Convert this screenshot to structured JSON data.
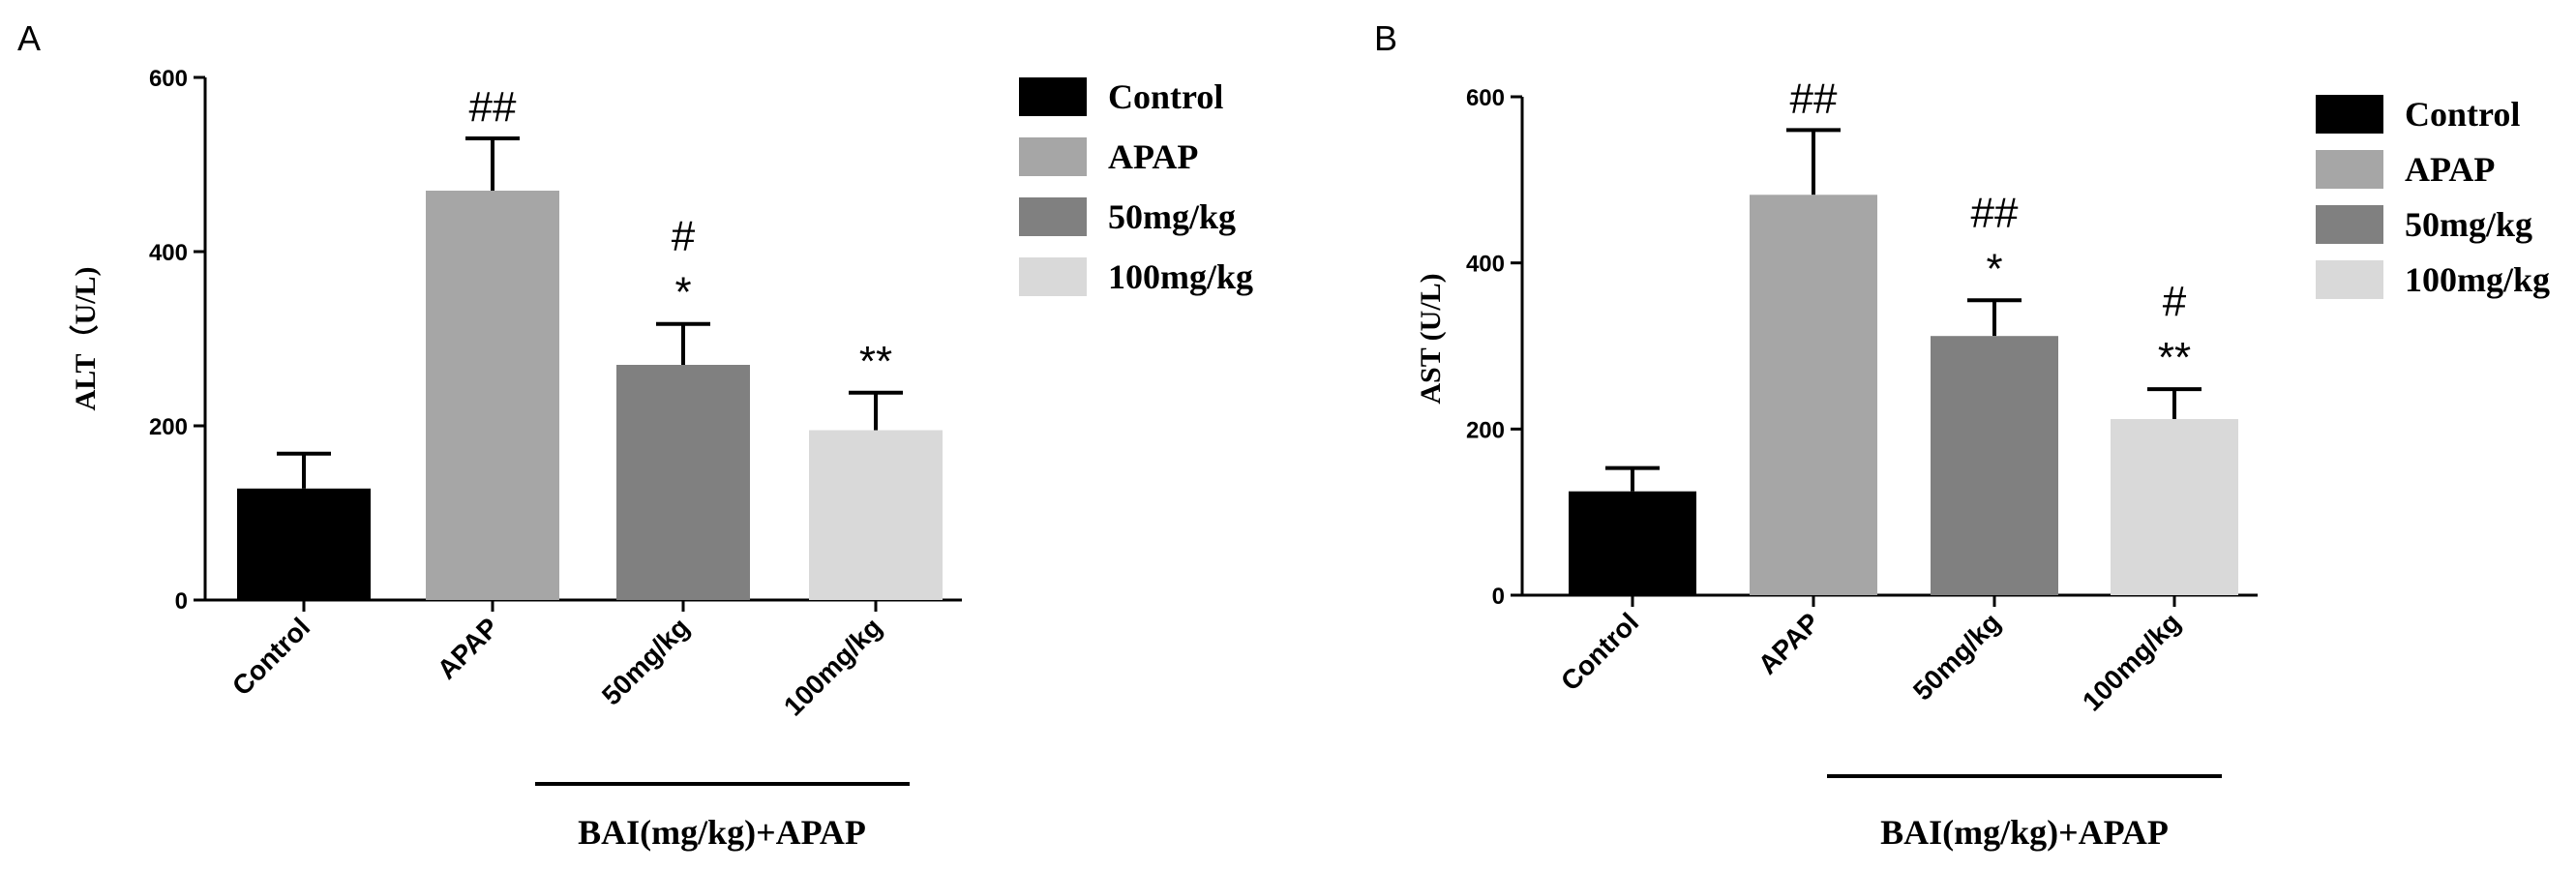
{
  "chart_data": [
    {
      "type": "bar",
      "panel_label": "A",
      "categories": [
        "Control",
        "APAP",
        "50mg/kg",
        "100mg/kg"
      ],
      "values": [
        128,
        470,
        270,
        195
      ],
      "errors": [
        40,
        60,
        47,
        43
      ],
      "annotations": [
        [],
        [
          "##"
        ],
        [
          "#",
          "*"
        ],
        [
          "**"
        ]
      ],
      "colors": [
        "#000000",
        "#a6a6a6",
        "#808080",
        "#d9d9d9"
      ],
      "ylabel": "ALT（U/L)",
      "ylim": [
        0,
        600
      ],
      "yticks": [
        0,
        200,
        400,
        600
      ],
      "group_label": "BAI(mg/kg)+APAP",
      "legend": [
        "Control",
        "APAP",
        "50mg/kg",
        "100mg/kg"
      ],
      "legend_position": "right"
    },
    {
      "type": "bar",
      "panel_label": "B",
      "categories": [
        "Control",
        "APAP",
        "50mg/kg",
        "100mg/kg"
      ],
      "values": [
        125,
        482,
        312,
        212
      ],
      "errors": [
        28,
        78,
        43,
        36
      ],
      "annotations": [
        [],
        [
          "##"
        ],
        [
          "##",
          "*"
        ],
        [
          "#",
          "**"
        ]
      ],
      "colors": [
        "#000000",
        "#a6a6a6",
        "#808080",
        "#d9d9d9"
      ],
      "ylabel": "AST (U/L)",
      "ylim": [
        0,
        600
      ],
      "yticks": [
        0,
        200,
        400,
        600
      ],
      "group_label": "BAI(mg/kg)+APAP",
      "legend": [
        "Control",
        "APAP",
        "50mg/kg",
        "100mg/kg"
      ],
      "legend_position": "right"
    }
  ]
}
